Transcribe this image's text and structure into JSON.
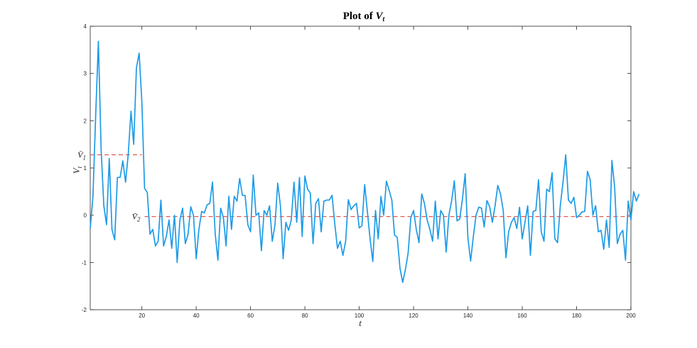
{
  "chart_data": {
    "type": "line",
    "title_prefix": "Plot of ",
    "title_var": "V",
    "title_sub": "t",
    "xlabel": "t",
    "ylabel_var": "V",
    "ylabel_sub": "t",
    "xlim": [
      1,
      200
    ],
    "ylim": [
      -2,
      4
    ],
    "xticks": [
      20,
      40,
      60,
      80,
      100,
      120,
      140,
      160,
      180,
      200
    ],
    "yticks": [
      -2,
      -1,
      0,
      1,
      2,
      3,
      4
    ],
    "grid": false,
    "line_color": "#1E9BE6",
    "ref_color": "#E0382E",
    "reference_lines": [
      {
        "var": "V̄",
        "sub": "1",
        "value": 1.28,
        "x_start": 1,
        "x_end": 20
      },
      {
        "var": "V̄",
        "sub": "2",
        "value": -0.03,
        "x_start": 21,
        "x_end": 200
      }
    ],
    "series": [
      {
        "x_start": 1,
        "values": [
          -0.28,
          0.4,
          2.1,
          3.68,
          1.4,
          0.2,
          -0.2,
          1.2,
          -0.3,
          -0.52,
          0.8,
          0.8,
          1.15,
          0.7,
          1.3,
          2.2,
          1.5,
          3.12,
          3.43,
          2.4,
          0.57,
          0.48,
          -0.4,
          -0.3,
          -0.65,
          -0.55,
          0.32,
          -0.65,
          -0.45,
          -0.1,
          -0.7,
          0.0,
          -1.0,
          -0.1,
          0.15,
          -0.6,
          -0.4,
          0.18,
          0.0,
          -0.92,
          -0.3,
          0.08,
          0.05,
          0.22,
          0.25,
          0.7,
          -0.4,
          -0.95,
          0.15,
          -0.05,
          -0.65,
          0.4,
          -0.3,
          0.4,
          0.3,
          0.78,
          0.42,
          0.42,
          -0.2,
          -0.35,
          0.85,
          0.0,
          0.05,
          -0.75,
          0.1,
          0.0,
          0.2,
          -0.55,
          -0.2,
          0.68,
          0.2,
          -0.92,
          -0.15,
          -0.32,
          -0.1,
          0.7,
          -0.15,
          0.8,
          -0.45,
          0.83,
          0.55,
          0.47,
          -0.6,
          0.25,
          0.35,
          -0.35,
          0.3,
          0.32,
          0.32,
          0.42,
          -0.18,
          -0.7,
          -0.55,
          -0.85,
          -0.55,
          0.33,
          0.12,
          0.2,
          0.25,
          -0.27,
          -0.22,
          0.65,
          0.08,
          -0.5,
          -0.98,
          0.1,
          -0.5,
          0.4,
          0.0,
          0.72,
          0.53,
          0.32,
          -0.42,
          -0.47,
          -1.12,
          -1.42,
          -1.15,
          -0.8,
          -0.05,
          0.1,
          -0.3,
          -0.58,
          0.45,
          0.25,
          -0.1,
          -0.3,
          -0.55,
          0.3,
          -0.5,
          0.1,
          0.0,
          -0.78,
          0.0,
          0.3,
          0.73,
          -0.12,
          -0.08,
          0.35,
          0.88,
          -0.48,
          -0.97,
          -0.45,
          0.0,
          0.17,
          0.15,
          -0.25,
          0.31,
          0.18,
          -0.15,
          0.2,
          0.63,
          0.45,
          0.1,
          -0.9,
          -0.35,
          -0.15,
          -0.05,
          -0.28,
          0.17,
          -0.5,
          -0.15,
          0.2,
          -0.85,
          0.08,
          0.1,
          0.75,
          -0.35,
          -0.55,
          0.55,
          0.5,
          0.9,
          -0.5,
          -0.58,
          0.2,
          0.7,
          1.28,
          0.32,
          0.25,
          0.38,
          -0.05,
          0.0,
          0.07,
          0.08,
          0.93,
          0.75,
          0.0,
          0.2,
          -0.35,
          -0.32,
          -0.72,
          -0.1,
          -0.68,
          1.16,
          0.6,
          -0.6,
          -0.4,
          -0.32,
          -0.95,
          0.3,
          -0.1,
          0.5,
          0.3,
          0.45
        ]
      }
    ]
  }
}
